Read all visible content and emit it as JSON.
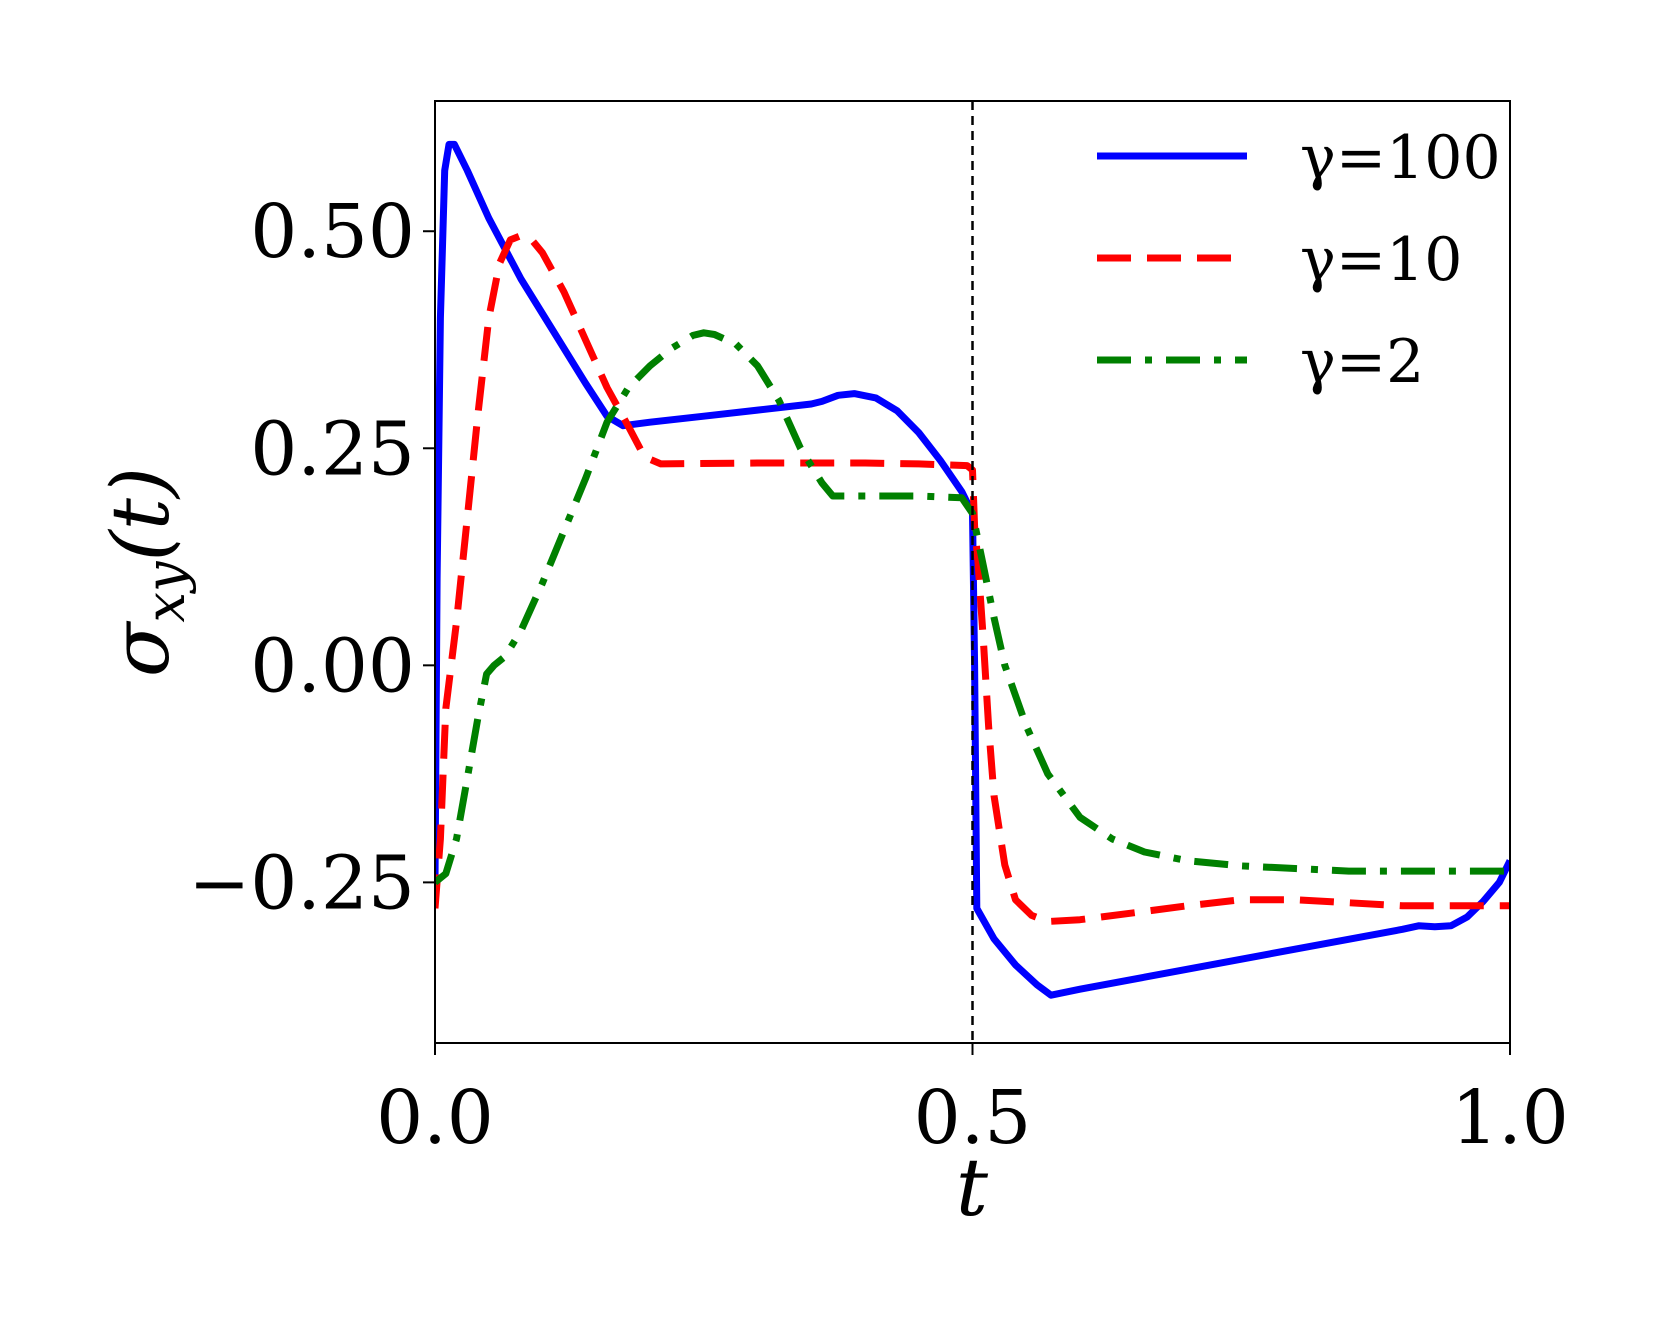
{
  "chart_data": {
    "type": "line",
    "xlabel": "t",
    "ylabel": {
      "base": "σ",
      "sub": "xy",
      "suffix": "(t)"
    },
    "xlim": [
      0.0,
      1.0
    ],
    "ylim": [
      -0.435,
      0.65
    ],
    "x_ticks": [
      0.0,
      0.5,
      1.0
    ],
    "x_tick_labels": [
      "0.0",
      "0.5",
      "1.0"
    ],
    "y_ticks": [
      -0.25,
      0.0,
      0.25,
      0.5
    ],
    "y_tick_labels": [
      "−0.25",
      "0.00",
      "0.25",
      "0.50"
    ],
    "grid": false,
    "legend_position": "top-right",
    "vline": {
      "x": 0.5,
      "style": "dashed",
      "color": "#000000"
    },
    "series": [
      {
        "name": "γ=100",
        "color": "#0000ff",
        "dash": "solid",
        "points": [
          [
            0.0,
            -0.25
          ],
          [
            0.002,
            0.1
          ],
          [
            0.005,
            0.4
          ],
          [
            0.009,
            0.57
          ],
          [
            0.013,
            0.6
          ],
          [
            0.018,
            0.6
          ],
          [
            0.03,
            0.57
          ],
          [
            0.05,
            0.515
          ],
          [
            0.08,
            0.445
          ],
          [
            0.11,
            0.385
          ],
          [
            0.14,
            0.325
          ],
          [
            0.16,
            0.287
          ],
          [
            0.175,
            0.276
          ],
          [
            0.2,
            0.28
          ],
          [
            0.25,
            0.287
          ],
          [
            0.3,
            0.294
          ],
          [
            0.35,
            0.301
          ],
          [
            0.36,
            0.304
          ],
          [
            0.375,
            0.311
          ],
          [
            0.39,
            0.313
          ],
          [
            0.41,
            0.308
          ],
          [
            0.43,
            0.293
          ],
          [
            0.45,
            0.268
          ],
          [
            0.47,
            0.236
          ],
          [
            0.49,
            0.2
          ],
          [
            0.5,
            0.175
          ],
          [
            0.502,
            0.0
          ],
          [
            0.504,
            -0.28
          ],
          [
            0.52,
            -0.315
          ],
          [
            0.54,
            -0.345
          ],
          [
            0.56,
            -0.368
          ],
          [
            0.573,
            -0.38
          ],
          [
            0.6,
            -0.373
          ],
          [
            0.7,
            -0.35
          ],
          [
            0.8,
            -0.327
          ],
          [
            0.9,
            -0.304
          ],
          [
            0.915,
            -0.3
          ],
          [
            0.93,
            -0.301
          ],
          [
            0.945,
            -0.3
          ],
          [
            0.96,
            -0.29
          ],
          [
            0.975,
            -0.272
          ],
          [
            0.99,
            -0.25
          ],
          [
            1.0,
            -0.225
          ]
        ]
      },
      {
        "name": "γ=10",
        "color": "#ff0000",
        "dash": "dashed",
        "points": [
          [
            0.0,
            -0.28
          ],
          [
            0.005,
            -0.2
          ],
          [
            0.01,
            -0.05
          ],
          [
            0.02,
            0.05
          ],
          [
            0.03,
            0.17
          ],
          [
            0.04,
            0.29
          ],
          [
            0.05,
            0.4
          ],
          [
            0.06,
            0.463
          ],
          [
            0.07,
            0.49
          ],
          [
            0.08,
            0.495
          ],
          [
            0.09,
            0.49
          ],
          [
            0.1,
            0.475
          ],
          [
            0.12,
            0.43
          ],
          [
            0.14,
            0.375
          ],
          [
            0.16,
            0.32
          ],
          [
            0.18,
            0.275
          ],
          [
            0.195,
            0.24
          ],
          [
            0.21,
            0.232
          ],
          [
            0.3,
            0.233
          ],
          [
            0.4,
            0.233
          ],
          [
            0.45,
            0.232
          ],
          [
            0.495,
            0.23
          ],
          [
            0.5,
            0.225
          ],
          [
            0.502,
            0.16
          ],
          [
            0.505,
            0.12
          ],
          [
            0.51,
            0.03
          ],
          [
            0.515,
            -0.07
          ],
          [
            0.52,
            -0.15
          ],
          [
            0.53,
            -0.23
          ],
          [
            0.54,
            -0.27
          ],
          [
            0.555,
            -0.288
          ],
          [
            0.57,
            -0.295
          ],
          [
            0.6,
            -0.293
          ],
          [
            0.65,
            -0.285
          ],
          [
            0.7,
            -0.277
          ],
          [
            0.75,
            -0.27
          ],
          [
            0.8,
            -0.27
          ],
          [
            0.9,
            -0.277
          ],
          [
            1.0,
            -0.277
          ]
        ]
      },
      {
        "name": "γ=2",
        "color": "#008000",
        "dash": "dashdot",
        "points": [
          [
            0.0,
            -0.25
          ],
          [
            0.01,
            -0.24
          ],
          [
            0.02,
            -0.2
          ],
          [
            0.03,
            -0.13
          ],
          [
            0.04,
            -0.06
          ],
          [
            0.048,
            -0.01
          ],
          [
            0.055,
            0.0
          ],
          [
            0.065,
            0.01
          ],
          [
            0.08,
            0.04
          ],
          [
            0.1,
            0.095
          ],
          [
            0.12,
            0.155
          ],
          [
            0.14,
            0.215
          ],
          [
            0.16,
            0.28
          ],
          [
            0.18,
            0.32
          ],
          [
            0.2,
            0.345
          ],
          [
            0.22,
            0.365
          ],
          [
            0.24,
            0.38
          ],
          [
            0.25,
            0.383
          ],
          [
            0.26,
            0.381
          ],
          [
            0.28,
            0.37
          ],
          [
            0.3,
            0.345
          ],
          [
            0.32,
            0.305
          ],
          [
            0.34,
            0.25
          ],
          [
            0.36,
            0.21
          ],
          [
            0.37,
            0.195
          ],
          [
            0.4,
            0.195
          ],
          [
            0.45,
            0.195
          ],
          [
            0.49,
            0.193
          ],
          [
            0.5,
            0.175
          ],
          [
            0.51,
            0.115
          ],
          [
            0.52,
            0.055
          ],
          [
            0.53,
            0.0
          ],
          [
            0.55,
            -0.07
          ],
          [
            0.57,
            -0.125
          ],
          [
            0.6,
            -0.175
          ],
          [
            0.63,
            -0.2
          ],
          [
            0.66,
            -0.215
          ],
          [
            0.7,
            -0.225
          ],
          [
            0.75,
            -0.231
          ],
          [
            0.8,
            -0.234
          ],
          [
            0.85,
            -0.237
          ],
          [
            0.9,
            -0.237
          ],
          [
            1.0,
            -0.237
          ]
        ]
      }
    ]
  }
}
